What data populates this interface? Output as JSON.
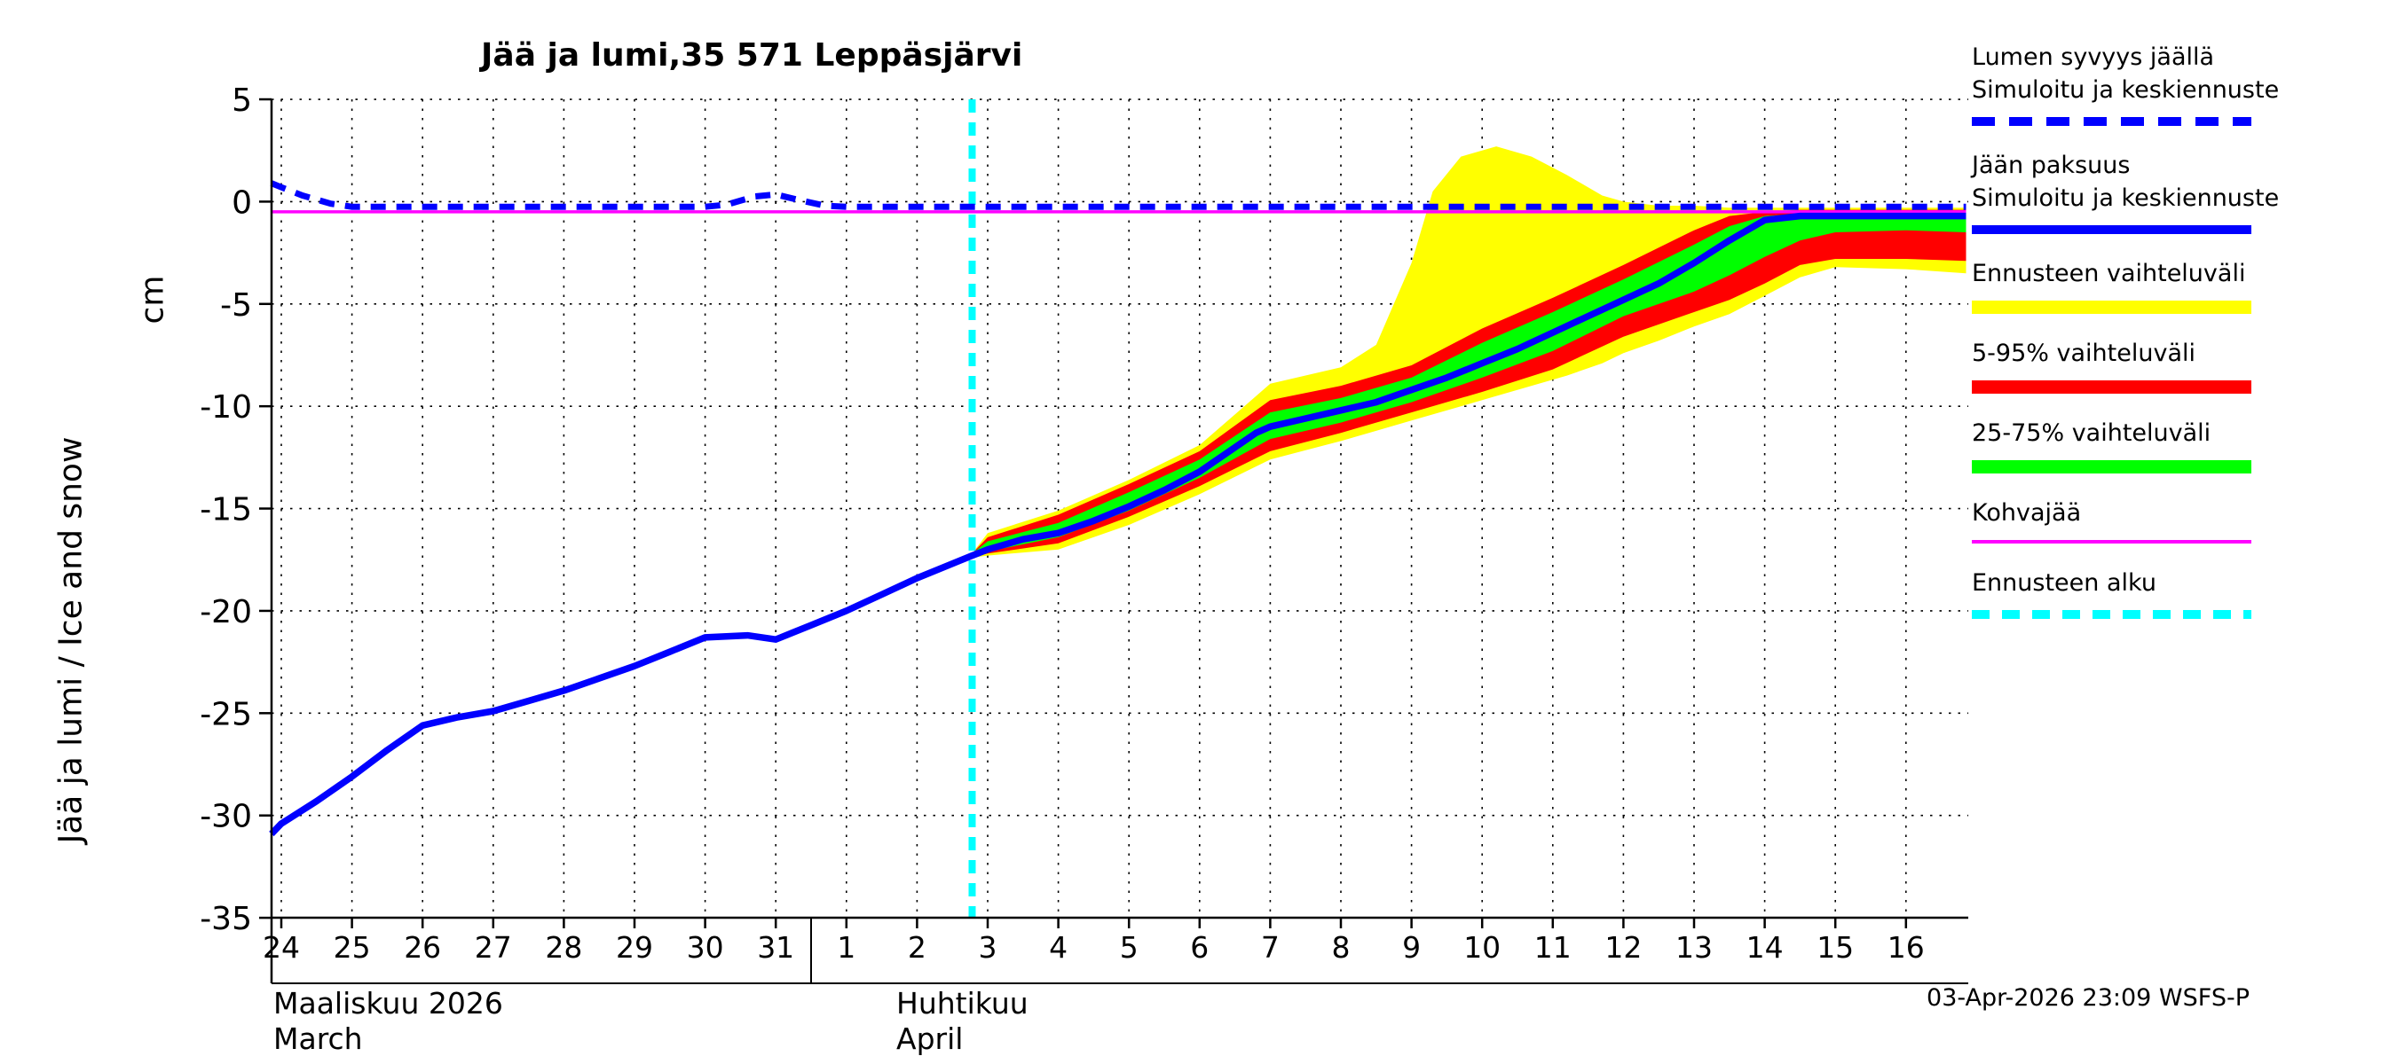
{
  "chart_data": {
    "type": "line",
    "title": "Jää ja lumi,35 571 Leppäsjärvi",
    "ylabel": "Jää ja lumi / Ice and snow",
    "ylabel_unit": "cm",
    "ylim": [
      -35,
      5
    ],
    "yticks": [
      5,
      0,
      -5,
      -10,
      -15,
      -20,
      -25,
      -30,
      -35
    ],
    "x_tick_labels": [
      "24",
      "25",
      "26",
      "27",
      "28",
      "29",
      "30",
      "31",
      "1",
      "2",
      "3",
      "4",
      "5",
      "6",
      "7",
      "8",
      "9",
      "10",
      "11",
      "12",
      "13",
      "14",
      "15",
      "16"
    ],
    "x_months": {
      "left_line1": "Maaliskuu 2026",
      "left_line2": "March",
      "right_line1": "Huhtikuu",
      "right_line2": "April"
    },
    "x_month_boundary_index": 7.5,
    "x_encoding": "day index, 0 = 24 March 2026",
    "forecast_start_x": 9.78,
    "grid": "dotted",
    "legend_position": "right",
    "colors": {
      "blue": "#0000ff",
      "yellow": "#ffff00",
      "red": "#ff0000",
      "green": "#00ff00",
      "magenta": "#ff00ff",
      "cyan": "#00ffff",
      "axis": "#000000"
    },
    "series": {
      "snow_depth_sim": [
        [
          -0.14,
          0.9
        ],
        [
          0,
          0.7
        ],
        [
          0.3,
          0.3
        ],
        [
          0.7,
          -0.1
        ],
        [
          1,
          -0.25
        ],
        [
          2,
          -0.25
        ],
        [
          3,
          -0.25
        ],
        [
          4,
          -0.25
        ],
        [
          5,
          -0.25
        ],
        [
          6,
          -0.25
        ],
        [
          6.3,
          -0.15
        ],
        [
          6.7,
          0.25
        ],
        [
          7,
          0.35
        ],
        [
          7.3,
          0.1
        ],
        [
          7.7,
          -0.2
        ],
        [
          8,
          -0.25
        ],
        [
          10,
          -0.25
        ],
        [
          12,
          -0.25
        ],
        [
          14,
          -0.25
        ],
        [
          16,
          -0.25
        ],
        [
          18,
          -0.25
        ],
        [
          20,
          -0.25
        ],
        [
          22,
          -0.25
        ],
        [
          23.85,
          -0.25
        ]
      ],
      "ice_thickness_sim": [
        [
          -0.14,
          -30.9
        ],
        [
          0,
          -30.4
        ],
        [
          0.5,
          -29.3
        ],
        [
          1,
          -28.1
        ],
        [
          1.5,
          -26.8
        ],
        [
          2,
          -25.6
        ],
        [
          2.5,
          -25.2
        ],
        [
          3,
          -24.9
        ],
        [
          3.5,
          -24.4
        ],
        [
          4,
          -23.9
        ],
        [
          4.5,
          -23.3
        ],
        [
          5,
          -22.7
        ],
        [
          5.5,
          -22.0
        ],
        [
          6,
          -21.3
        ],
        [
          6.6,
          -21.2
        ],
        [
          7,
          -21.4
        ],
        [
          7.5,
          -20.7
        ],
        [
          8,
          -20.0
        ],
        [
          8.5,
          -19.2
        ],
        [
          9,
          -18.4
        ],
        [
          9.78,
          -17.3
        ],
        [
          10,
          -17.0
        ],
        [
          10.5,
          -16.5
        ],
        [
          11,
          -16.2
        ],
        [
          11.5,
          -15.6
        ],
        [
          12,
          -14.9
        ],
        [
          12.5,
          -14.1
        ],
        [
          13,
          -13.2
        ],
        [
          13.8,
          -11.3
        ],
        [
          14,
          -11.0
        ],
        [
          14.5,
          -10.6
        ],
        [
          15,
          -10.2
        ],
        [
          15.5,
          -9.8
        ],
        [
          16,
          -9.2
        ],
        [
          16.5,
          -8.6
        ],
        [
          17,
          -7.9
        ],
        [
          17.5,
          -7.2
        ],
        [
          18,
          -6.4
        ],
        [
          18.5,
          -5.6
        ],
        [
          19,
          -4.8
        ],
        [
          19.5,
          -4.0
        ],
        [
          20,
          -3.0
        ],
        [
          20.5,
          -1.9
        ],
        [
          21,
          -0.9
        ],
        [
          21.5,
          -0.7
        ],
        [
          22,
          -0.7
        ],
        [
          23,
          -0.7
        ],
        [
          23.85,
          -0.7
        ]
      ],
      "kohvajaa": [
        [
          -0.14,
          -0.5
        ],
        [
          23.85,
          -0.5
        ]
      ]
    },
    "band_format": "[x, lower, upper]",
    "bands": {
      "forecast_range": [
        [
          9.78,
          -17.4,
          -17.2
        ],
        [
          10,
          -17.3,
          -16.2
        ],
        [
          11,
          -17.0,
          -15.1
        ],
        [
          12,
          -15.8,
          -13.6
        ],
        [
          13,
          -14.3,
          -11.9
        ],
        [
          14,
          -12.6,
          -8.9
        ],
        [
          15,
          -11.7,
          -8.1
        ],
        [
          15.5,
          -11.2,
          -7.0
        ],
        [
          16,
          -10.7,
          -3.0
        ],
        [
          16.3,
          -10.4,
          0.5
        ],
        [
          16.7,
          -10.0,
          2.2
        ],
        [
          17.2,
          -9.5,
          2.7
        ],
        [
          17.7,
          -9.0,
          2.2
        ],
        [
          18.2,
          -8.5,
          1.3
        ],
        [
          18.7,
          -7.9,
          0.3
        ],
        [
          19,
          -7.4,
          0.0
        ],
        [
          19.5,
          -6.8,
          -0.2
        ],
        [
          20,
          -6.1,
          -0.2
        ],
        [
          20.5,
          -5.5,
          -0.3
        ],
        [
          21,
          -4.6,
          -0.3
        ],
        [
          21.5,
          -3.7,
          -0.3
        ],
        [
          22,
          -3.2,
          -0.3
        ],
        [
          23,
          -3.3,
          -0.3
        ],
        [
          23.85,
          -3.5,
          -0.3
        ]
      ],
      "range_5_95": [
        [
          9.78,
          -17.4,
          -17.2
        ],
        [
          10,
          -17.2,
          -16.4
        ],
        [
          11,
          -16.7,
          -15.3
        ],
        [
          12,
          -15.4,
          -13.8
        ],
        [
          13,
          -13.9,
          -12.2
        ],
        [
          14,
          -12.2,
          -9.7
        ],
        [
          15,
          -11.3,
          -9.0
        ],
        [
          16,
          -10.3,
          -8.0
        ],
        [
          17,
          -9.3,
          -6.2
        ],
        [
          18,
          -8.2,
          -4.7
        ],
        [
          19,
          -6.6,
          -3.1
        ],
        [
          20,
          -5.4,
          -1.4
        ],
        [
          20.5,
          -4.8,
          -0.7
        ],
        [
          21,
          -4.0,
          -0.5
        ],
        [
          21.5,
          -3.1,
          -0.4
        ],
        [
          22,
          -2.8,
          -0.4
        ],
        [
          23,
          -2.8,
          -0.4
        ],
        [
          23.85,
          -2.9,
          -0.4
        ]
      ],
      "range_25_75": [
        [
          9.78,
          -17.4,
          -17.2
        ],
        [
          10,
          -17.1,
          -16.6
        ],
        [
          11,
          -16.4,
          -15.7
        ],
        [
          12,
          -15.1,
          -14.2
        ],
        [
          13,
          -13.5,
          -12.6
        ],
        [
          14,
          -11.6,
          -10.3
        ],
        [
          15,
          -10.8,
          -9.6
        ],
        [
          16,
          -9.8,
          -8.6
        ],
        [
          17,
          -8.6,
          -6.9
        ],
        [
          18,
          -7.3,
          -5.4
        ],
        [
          19,
          -5.6,
          -3.8
        ],
        [
          20,
          -4.4,
          -2.1
        ],
        [
          20.5,
          -3.6,
          -1.2
        ],
        [
          21,
          -2.7,
          -0.7
        ],
        [
          21.5,
          -1.9,
          -0.6
        ],
        [
          22,
          -1.5,
          -0.6
        ],
        [
          23,
          -1.4,
          -0.6
        ],
        [
          23.85,
          -1.5,
          -0.6
        ]
      ]
    }
  },
  "legend": [
    {
      "key": "snow-depth",
      "lines": [
        "Lumen syvyys jäällä",
        "Simuloitu ja keskiennuste"
      ],
      "color": "blue",
      "dashed": true
    },
    {
      "key": "ice-thickness",
      "lines": [
        "Jään paksuus",
        "Simuloitu ja keskiennuste"
      ],
      "color": "blue",
      "dashed": false
    },
    {
      "key": "forecast-range",
      "lines": [
        "Ennusteen vaihteluväli"
      ],
      "color": "yellow",
      "dashed": false
    },
    {
      "key": "range-5-95",
      "lines": [
        "5-95% vaihteluväli"
      ],
      "color": "red",
      "dashed": false
    },
    {
      "key": "range-25-75",
      "lines": [
        "25-75% vaihteluväli"
      ],
      "color": "green",
      "dashed": false
    },
    {
      "key": "kohvajaa",
      "lines": [
        "Kohvajää"
      ],
      "color": "magenta",
      "dashed": false
    },
    {
      "key": "forecast-start",
      "lines": [
        "Ennusteen alku"
      ],
      "color": "cyan",
      "dashed": true
    }
  ],
  "footer": {
    "timestamp": "03-Apr-2026 23:09 WSFS-P"
  }
}
